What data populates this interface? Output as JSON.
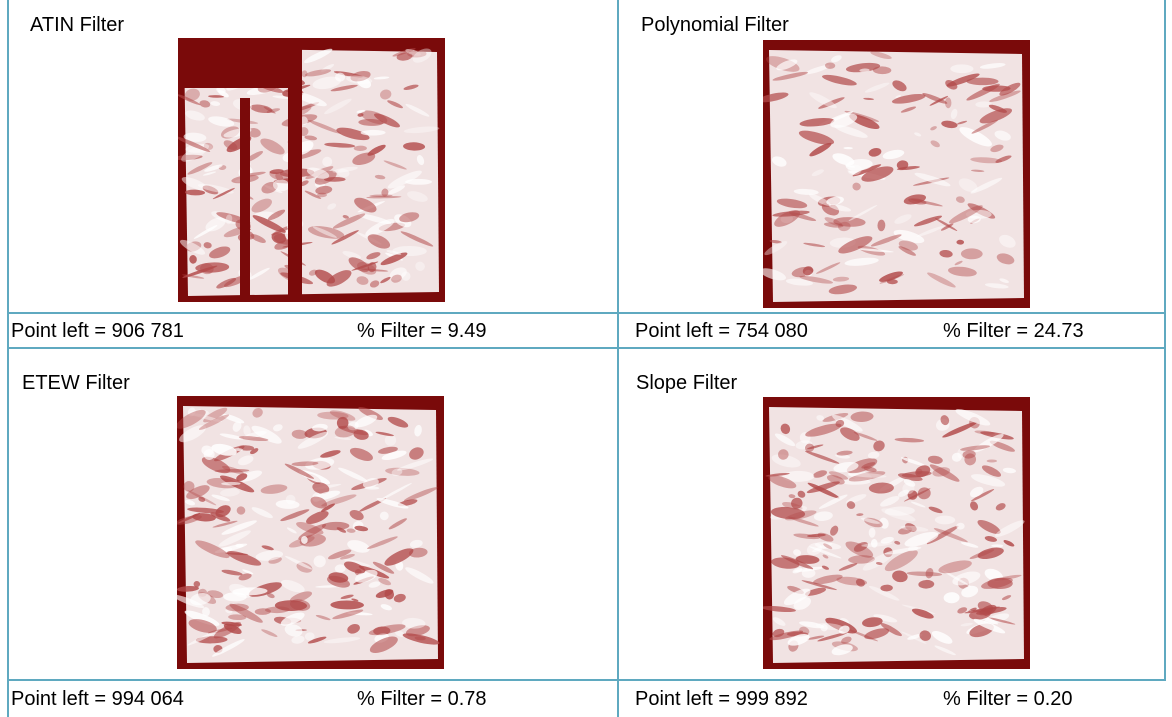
{
  "panels": [
    {
      "title": "ATIN Filter",
      "point_left": "Point left = 906 781",
      "filter": "% Filter = 9.49"
    },
    {
      "title": "Polynomial Filter",
      "point_left": "Point left = 754 080",
      "filter": "% Filter = 24.73"
    },
    {
      "title": "ETEW Filter",
      "point_left": "Point left = 994 064",
      "filter": "% Filter = 0.78"
    },
    {
      "title": "Slope Filter",
      "point_left": "Point left = 999 892",
      "filter": "% Filter = 0.20"
    }
  ]
}
